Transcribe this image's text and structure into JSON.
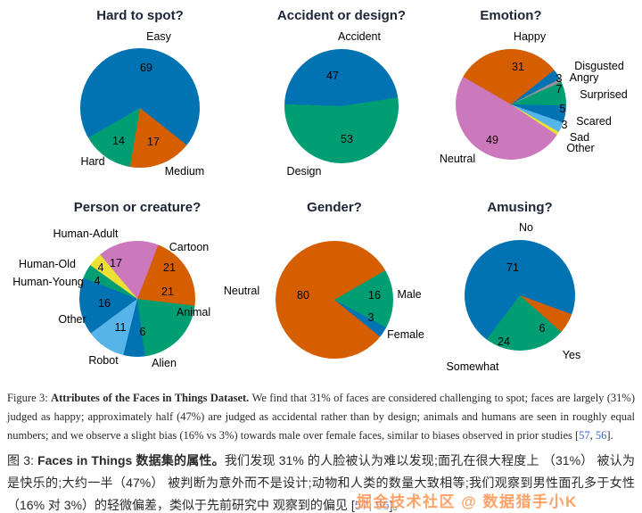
{
  "figure": {
    "link_color": "#3366cc",
    "caption_en": {
      "label": "Figure 3: ",
      "title": "Attributes of the Faces in Things Dataset. ",
      "body": "We find that 31% of faces are considered challenging to spot; faces are largely (31%) judged as happy; approximately half (47%) are judged as accidental rather than by design; animals and humans are seen in roughly equal numbers; and we observe a slight bias (16% vs 3%) towards male over female faces, similar to biases observed in prior studies ",
      "cite_open": "[",
      "cite_a": "57",
      "cite_sep": ", ",
      "cite_b": "56",
      "cite_close": "]."
    },
    "caption_zh": {
      "label": "图 3: ",
      "title": "Faces in Things 数据集的属性。",
      "body": "我们发现 31% 的人脸被认为难以发现;面孔在很大程度上 （31%） 被认为是快乐的;大约一半（47%） 被判断为意外而不是设计;动物和人类的数量大致相等;我们观察到男性面孔多于女性（16% 对 3%）的轻微偏差，类似于先前研究中 观察到的偏见 ",
      "cite_open": "[",
      "cite_a": "57",
      "cite_sep": ", ",
      "cite_b": "56",
      "cite_close": "]。"
    }
  },
  "watermark": {
    "text": "掘金技术社区 @ 数据猎手小K",
    "color": "#ff8c42"
  },
  "chart_data": [
    {
      "type": "pie",
      "title": "Hard to spot?",
      "unit": "%",
      "from_deg": -120,
      "center": [
        157,
        121
      ],
      "radius": 67,
      "slices": [
        {
          "label": "Easy",
          "value": 69,
          "color": "#0173b2",
          "num": [
            164,
            76
          ],
          "lab": [
            178,
            41
          ]
        },
        {
          "label": "Medium",
          "value": 17,
          "color": "#d55e00",
          "num": [
            172,
            159
          ],
          "lab": [
            207,
            192
          ]
        },
        {
          "label": "Hard",
          "value": 14,
          "color": "#029e73",
          "num": [
            133,
            158
          ],
          "lab": [
            104,
            181
          ]
        }
      ]
    },
    {
      "type": "pie",
      "title": "Accident or design?",
      "unit": "%",
      "from_deg": -88,
      "center": [
        143,
        119
      ],
      "radius": 64,
      "slices": [
        {
          "label": "Accident",
          "value": 47,
          "color": "#0173b2",
          "num": [
            133,
            85
          ],
          "lab": [
            163,
            41
          ]
        },
        {
          "label": "Design",
          "value": 53,
          "color": "#029e73",
          "num": [
            149,
            156
          ],
          "lab": [
            101,
            192
          ]
        }
      ]
    },
    {
      "type": "pie",
      "title": "Emotion?",
      "unit": "%",
      "from_deg": -60,
      "center": [
        93,
        117
      ],
      "radius": 62,
      "slices": [
        {
          "label": "Happy",
          "value": 31,
          "color": "#d55e00",
          "num": [
            101,
            75
          ],
          "lab": [
            114,
            41
          ]
        },
        {
          "label": "Disgusted",
          "value": 3,
          "color": "#0173b2",
          "num": [
            147,
            88
          ],
          "lab": [
            192,
            74
          ]
        },
        {
          "label": "Angry",
          "value": 1,
          "color": "#949494",
          "num": null,
          "lab": [
            175,
            87
          ]
        },
        {
          "label": "Surprised",
          "value": 7,
          "color": "#029e73",
          "num": [
            147,
            100
          ],
          "lab": [
            197,
            106
          ]
        },
        {
          "label": "Scared",
          "value": 5,
          "color": "#0173b2",
          "num": [
            151,
            122
          ],
          "lab": [
            186,
            136
          ]
        },
        {
          "label": "Sad",
          "value": 3,
          "color": "#56b4e9",
          "num": [
            153,
            140
          ],
          "lab": [
            170,
            154
          ]
        },
        {
          "label": "Other",
          "value": 1,
          "color": "#ece133",
          "num": null,
          "lab": [
            171,
            166
          ]
        },
        {
          "label": "Neutral",
          "value": 49,
          "color": "#cc78bc",
          "num": [
            72,
            157
          ],
          "lab": [
            33,
            178
          ]
        }
      ]
    },
    {
      "type": "pie",
      "title": "Person or creature?",
      "unit": "%",
      "from_deg": -40,
      "center": [
        154,
        120
      ],
      "radius": 65,
      "slices": [
        {
          "label": "Human-Adult",
          "value": 17,
          "color": "#cc78bc",
          "num": [
            130,
            80
          ],
          "lab": [
            96,
            47
          ]
        },
        {
          "label": "Cartoon",
          "value": 21,
          "color": "#d55e00",
          "num": [
            190,
            85
          ],
          "lab": [
            212,
            62
          ]
        },
        {
          "label": "Animal",
          "value": 21,
          "color": "#029e73",
          "num": [
            188,
            112
          ],
          "lab": [
            217,
            135
          ]
        },
        {
          "label": "Alien",
          "value": 6,
          "color": "#0173b2",
          "num": [
            160,
            157
          ],
          "lab": [
            184,
            192
          ]
        },
        {
          "label": "Robot",
          "value": 11,
          "color": "#56b4e9",
          "num": [
            135,
            152
          ],
          "lab": [
            116,
            189
          ]
        },
        {
          "label": "Other",
          "value": 16,
          "color": "#0173b2",
          "num": [
            117,
            125
          ],
          "lab": [
            81,
            143
          ]
        },
        {
          "label": "Human-Young",
          "value": 4,
          "color": "#029e73",
          "num": [
            109,
            100
          ],
          "lab": [
            54,
            101
          ]
        },
        {
          "label": "Human-Old",
          "value": 4,
          "color": "#ece133",
          "num": [
            113,
            85
          ],
          "lab": [
            53,
            81
          ]
        }
      ]
    },
    {
      "type": "pie",
      "title": "Gender?",
      "unit": "%",
      "from_deg": 129,
      "center": [
        135,
        121
      ],
      "radius": 66,
      "slices": [
        {
          "label": "Neutral",
          "value": 80,
          "color": "#d55e00",
          "num": [
            100,
            116
          ],
          "lab": [
            31,
            111
          ]
        },
        {
          "label": "Male",
          "value": 16,
          "color": "#029e73",
          "num": [
            180,
            116
          ],
          "lab": [
            219,
            115
          ]
        },
        {
          "label": "Female",
          "value": 3,
          "color": "#0173b2",
          "num": [
            176,
            141
          ],
          "lab": [
            215,
            160
          ]
        }
      ]
    },
    {
      "type": "pie",
      "title": "Amusing?",
      "unit": "%",
      "from_deg": 217,
      "center": [
        103,
        116
      ],
      "radius": 62,
      "slices": [
        {
          "label": "No",
          "value": 71,
          "color": "#0173b2",
          "num": [
            95,
            85
          ],
          "lab": [
            110,
            40
          ]
        },
        {
          "label": "Yes",
          "value": 6,
          "color": "#d55e00",
          "num": [
            128,
            153
          ],
          "lab": [
            161,
            183
          ]
        },
        {
          "label": "Somewhat",
          "value": 24,
          "color": "#029e73",
          "num": [
            85,
            168
          ],
          "lab": [
            50,
            196
          ]
        }
      ]
    }
  ]
}
